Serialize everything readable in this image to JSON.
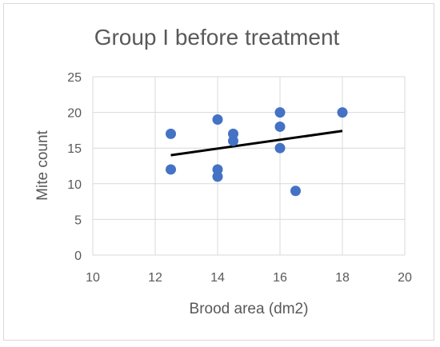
{
  "chart_data": {
    "type": "scatter",
    "title": "Group I before treatment",
    "xlabel": "Brood area (dm2)",
    "ylabel": "Mite count",
    "xlim": [
      10,
      20
    ],
    "ylim": [
      0,
      25
    ],
    "xticks": [
      "10",
      "12",
      "14",
      "16",
      "18",
      "20"
    ],
    "yticks": [
      "0",
      "5",
      "10",
      "15",
      "20",
      "25"
    ],
    "grid": true,
    "legend": "none",
    "points": [
      {
        "x": 12.5,
        "y": 17
      },
      {
        "x": 12.5,
        "y": 12
      },
      {
        "x": 14,
        "y": 19
      },
      {
        "x": 14,
        "y": 12
      },
      {
        "x": 14,
        "y": 11
      },
      {
        "x": 14.5,
        "y": 17
      },
      {
        "x": 14.5,
        "y": 16
      },
      {
        "x": 16,
        "y": 20
      },
      {
        "x": 16,
        "y": 18
      },
      {
        "x": 16,
        "y": 15
      },
      {
        "x": 16.5,
        "y": 9
      },
      {
        "x": 18,
        "y": 20
      }
    ],
    "trendline": {
      "type": "linear",
      "x": [
        12.5,
        18
      ],
      "y": [
        14.0,
        17.4
      ]
    },
    "colors": {
      "marker": "#4472C4",
      "trendline": "#000000",
      "grid": "#d9d9d9",
      "text": "#595959"
    }
  }
}
